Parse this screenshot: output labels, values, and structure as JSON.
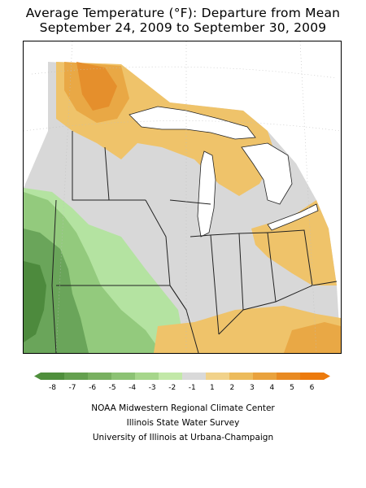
{
  "title_line1": "Average Temperature (°F): Departure from Mean",
  "title_line2": "September 24, 2009 to September 30, 2009",
  "legend": {
    "ticks": [
      "-8",
      "-7",
      "-6",
      "-5",
      "-4",
      "-3",
      "-2",
      "-1",
      "1",
      "2",
      "3",
      "4",
      "5",
      "6"
    ],
    "colors": [
      "#4f8f3c",
      "#64a04f",
      "#78b060",
      "#8cc274",
      "#a6d68b",
      "#c2e8a8",
      "#d9d9d9",
      "#f1d28a",
      "#ecbb5c",
      "#e9a23d",
      "#e88a22",
      "#ec7a0c"
    ]
  },
  "map_colors": {
    "neutral": "#d8d8d8",
    "orange_light": "#efc36a",
    "orange_mid": "#e9a845",
    "orange_dark": "#e58f2c",
    "green_light": "#b4e3a1",
    "green_mid": "#93ca7d",
    "green_dark": "#6aa55a",
    "green_darkest": "#4d8a3d",
    "border": "#222222",
    "grid": "#bdbdbd"
  },
  "credits": [
    "NOAA Midwestern Regional Climate Center",
    "Illinois State Water Survey",
    "University of Illinois at Urbana-Champaign"
  ]
}
